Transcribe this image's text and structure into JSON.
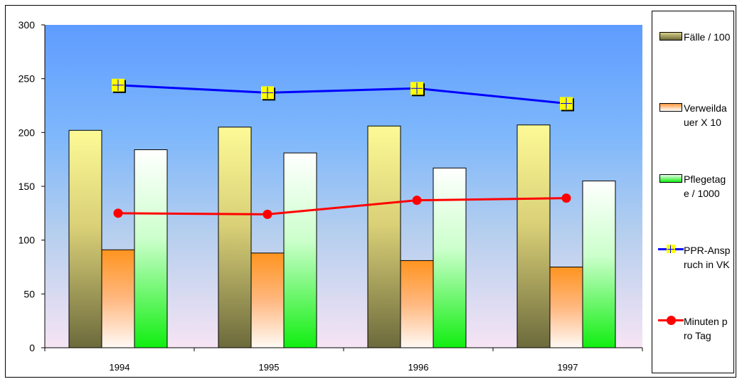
{
  "chart_data": {
    "type": "bar",
    "title": "",
    "xlabel": "",
    "ylabel": "",
    "ylim": [
      0,
      300
    ],
    "yticks": [
      0,
      50,
      100,
      150,
      200,
      250,
      300
    ],
    "categories": [
      "1994",
      "1995",
      "1996",
      "1997"
    ],
    "grid": false,
    "legend_position": "right",
    "series": [
      {
        "name": "Fälle / 100",
        "kind": "bar",
        "color": "#8a8650",
        "values": [
          202,
          205,
          206,
          207
        ]
      },
      {
        "name": "Verweildauer X 10",
        "kind": "bar",
        "color": "#ff9a33",
        "values": [
          91,
          88,
          81,
          75
        ]
      },
      {
        "name": "Pflegetage / 1000",
        "kind": "bar",
        "color": "#22ee22",
        "values": [
          184,
          181,
          167,
          155
        ]
      },
      {
        "name": "PPR-Anspruch in VK",
        "kind": "line",
        "color": "#0000ff",
        "marker": "yellow-square-plus",
        "values": [
          244,
          237,
          241,
          227
        ]
      },
      {
        "name": "Minuten pro Tag",
        "kind": "line",
        "color": "#ff0000",
        "marker": "circle",
        "values": [
          125,
          124,
          137,
          139
        ]
      }
    ]
  },
  "legend": {
    "items": [
      {
        "label": "Fälle / 100"
      },
      {
        "label": "Verweildauer X 10"
      },
      {
        "label": "Pflegetage / 1000"
      },
      {
        "label": "PPR-Anspruch in VK"
      },
      {
        "label": "Minuten pro Tag"
      }
    ]
  }
}
